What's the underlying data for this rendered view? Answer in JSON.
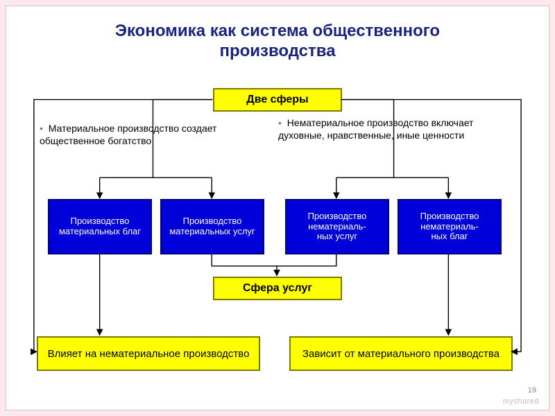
{
  "title": {
    "line1": "Экономика как система общественного",
    "line2": "производства",
    "fontsize": 24,
    "color": "#1a237e"
  },
  "boxes": {
    "two_spheres": {
      "label": "Две сферы",
      "fontsize": 16
    },
    "service_sphere": {
      "label": "Сфера услуг",
      "fontsize": 16
    },
    "affects": {
      "label": "Влияет на нематериальное производство",
      "fontsize": 15
    },
    "depends": {
      "label": "Зависит от материального производства",
      "fontsize": 15
    }
  },
  "blue_boxes": {
    "b1": {
      "label": "Производство материальных благ",
      "fontsize": 13
    },
    "b2": {
      "label": "Производство материальных услуг",
      "fontsize": 13
    },
    "b3": {
      "label": "Производство нематериаль-\nных услуг",
      "fontsize": 13
    },
    "b4": {
      "label": "Производство нематериаль-\nных благ",
      "fontsize": 13
    }
  },
  "bullets": {
    "left": {
      "text": "Материальное производство создает общественное богатство",
      "fontsize": 14
    },
    "right": {
      "text": "Нематериальное производство включает духовные, нравственные, иные ценности",
      "fontsize": 14
    }
  },
  "colors": {
    "page_bg": "#fce8ed",
    "frame_bg": "#ffffff",
    "yellow_fill": "#ffff00",
    "yellow_border": "#7a7a00",
    "blue_fill": "#0000d8",
    "blue_border": "#000080",
    "blue_text": "#ffffff",
    "connector": "#000000"
  },
  "watermark": "myshared",
  "page_number": "19",
  "type": "flowchart",
  "connectors": {
    "stroke": "#000000",
    "stroke_width": 1.4,
    "arrow_size": 7
  }
}
